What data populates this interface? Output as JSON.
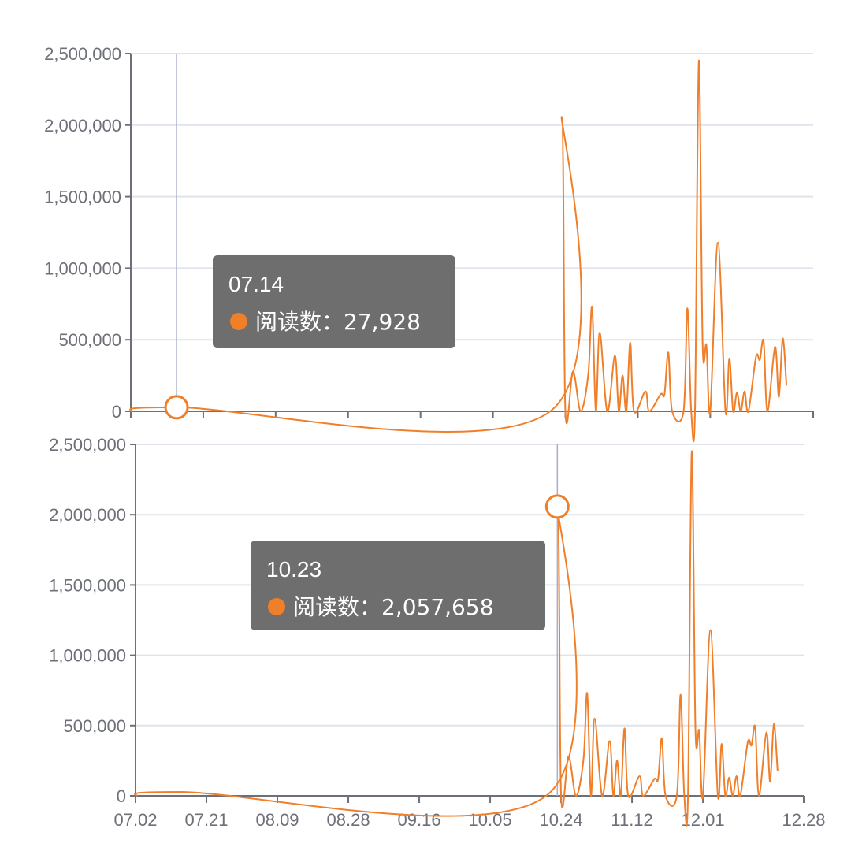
{
  "chart_data": [
    {
      "type": "line",
      "title": "",
      "xlabel": "",
      "ylabel": "",
      "ylim": [
        0,
        2500000
      ],
      "yticks": [
        "2,500,000",
        "2,000,000",
        "1,500,000",
        "1,000,000",
        "500,000",
        "0"
      ],
      "ytick_values": [
        2500000,
        2000000,
        1500000,
        1000000,
        500000,
        0
      ],
      "x_tick_labels": [],
      "grid": true,
      "color": "#f07f2a",
      "series": [
        {
          "name": "阅读数",
          "points": [
            {
              "x": "07.02",
              "y": 0
            },
            {
              "x": "07.14",
              "y": 27928
            },
            {
              "x": "10.20",
              "y": 0
            },
            {
              "x": "10.23",
              "y": 2057658
            },
            {
              "x": "10.24",
              "y": 0
            },
            {
              "x": "10.26",
              "y": 280000
            },
            {
              "x": "10.28",
              "y": 0
            },
            {
              "x": "10.30",
              "y": 260000
            },
            {
              "x": "10.31",
              "y": 730000
            },
            {
              "x": "11.01",
              "y": 0
            },
            {
              "x": "11.02",
              "y": 550000
            },
            {
              "x": "11.04",
              "y": 0
            },
            {
              "x": "11.06",
              "y": 390000
            },
            {
              "x": "11.07",
              "y": 0
            },
            {
              "x": "11.08",
              "y": 250000
            },
            {
              "x": "11.09",
              "y": 0
            },
            {
              "x": "11.10",
              "y": 480000
            },
            {
              "x": "11.11",
              "y": 0
            },
            {
              "x": "11.14",
              "y": 140000
            },
            {
              "x": "11.15",
              "y": 0
            },
            {
              "x": "11.18",
              "y": 120000
            },
            {
              "x": "11.19",
              "y": 120000
            },
            {
              "x": "11.20",
              "y": 410000
            },
            {
              "x": "11.21",
              "y": 0
            },
            {
              "x": "11.24",
              "y": 0
            },
            {
              "x": "11.25",
              "y": 720000
            },
            {
              "x": "11.26",
              "y": 0
            },
            {
              "x": "11.27",
              "y": 0
            },
            {
              "x": "11.28",
              "y": 2450000
            },
            {
              "x": "11.29",
              "y": 470000
            },
            {
              "x": "11.30",
              "y": 460000
            },
            {
              "x": "12.01",
              "y": 0
            },
            {
              "x": "12.03",
              "y": 1180000
            },
            {
              "x": "12.05",
              "y": 0
            },
            {
              "x": "12.06",
              "y": 370000
            },
            {
              "x": "12.07",
              "y": 0
            },
            {
              "x": "12.08",
              "y": 130000
            },
            {
              "x": "12.09",
              "y": 0
            },
            {
              "x": "12.10",
              "y": 140000
            },
            {
              "x": "12.11",
              "y": 0
            },
            {
              "x": "12.13",
              "y": 380000
            },
            {
              "x": "12.14",
              "y": 360000
            },
            {
              "x": "12.15",
              "y": 490000
            },
            {
              "x": "12.16",
              "y": 0
            },
            {
              "x": "12.18",
              "y": 450000
            },
            {
              "x": "12.19",
              "y": 100000
            },
            {
              "x": "12.20",
              "y": 510000
            },
            {
              "x": "12.21",
              "y": 180000
            }
          ]
        }
      ],
      "tooltip": {
        "date": "07.14",
        "label": "阅读数：27,928",
        "value": 27928,
        "x": "07.14"
      }
    },
    {
      "type": "line",
      "title": "",
      "xlabel": "",
      "ylabel": "",
      "ylim": [
        0,
        2500000
      ],
      "yticks": [
        "2,500,000",
        "2,000,000",
        "1,500,000",
        "1,000,000",
        "500,000",
        "0"
      ],
      "ytick_values": [
        2500000,
        2000000,
        1500000,
        1000000,
        500000,
        0
      ],
      "x_tick_labels": [
        "07.02",
        "07.21",
        "08.09",
        "08.28",
        "09.16",
        "10.05",
        "10.24",
        "11.12",
        "12.01",
        "12.28"
      ],
      "grid": true,
      "color": "#f07f2a",
      "series": [
        {
          "name": "阅读数",
          "points": [
            {
              "x": "07.02",
              "y": 0
            },
            {
              "x": "07.14",
              "y": 27928
            },
            {
              "x": "10.20",
              "y": 0
            },
            {
              "x": "10.23",
              "y": 2057658
            },
            {
              "x": "10.24",
              "y": 0
            },
            {
              "x": "10.26",
              "y": 280000
            },
            {
              "x": "10.28",
              "y": 0
            },
            {
              "x": "10.30",
              "y": 260000
            },
            {
              "x": "10.31",
              "y": 730000
            },
            {
              "x": "11.01",
              "y": 0
            },
            {
              "x": "11.02",
              "y": 550000
            },
            {
              "x": "11.04",
              "y": 0
            },
            {
              "x": "11.06",
              "y": 390000
            },
            {
              "x": "11.07",
              "y": 0
            },
            {
              "x": "11.08",
              "y": 250000
            },
            {
              "x": "11.09",
              "y": 0
            },
            {
              "x": "11.10",
              "y": 480000
            },
            {
              "x": "11.11",
              "y": 0
            },
            {
              "x": "11.14",
              "y": 140000
            },
            {
              "x": "11.15",
              "y": 0
            },
            {
              "x": "11.18",
              "y": 120000
            },
            {
              "x": "11.19",
              "y": 120000
            },
            {
              "x": "11.20",
              "y": 410000
            },
            {
              "x": "11.21",
              "y": 0
            },
            {
              "x": "11.24",
              "y": 0
            },
            {
              "x": "11.25",
              "y": 720000
            },
            {
              "x": "11.26",
              "y": 0
            },
            {
              "x": "11.27",
              "y": 0
            },
            {
              "x": "11.28",
              "y": 2450000
            },
            {
              "x": "11.29",
              "y": 470000
            },
            {
              "x": "11.30",
              "y": 460000
            },
            {
              "x": "12.01",
              "y": 0
            },
            {
              "x": "12.03",
              "y": 1180000
            },
            {
              "x": "12.05",
              "y": 0
            },
            {
              "x": "12.06",
              "y": 370000
            },
            {
              "x": "12.07",
              "y": 0
            },
            {
              "x": "12.08",
              "y": 130000
            },
            {
              "x": "12.09",
              "y": 0
            },
            {
              "x": "12.10",
              "y": 140000
            },
            {
              "x": "12.11",
              "y": 0
            },
            {
              "x": "12.13",
              "y": 380000
            },
            {
              "x": "12.14",
              "y": 360000
            },
            {
              "x": "12.15",
              "y": 490000
            },
            {
              "x": "12.16",
              "y": 0
            },
            {
              "x": "12.18",
              "y": 450000
            },
            {
              "x": "12.19",
              "y": 100000
            },
            {
              "x": "12.20",
              "y": 510000
            },
            {
              "x": "12.21",
              "y": 180000
            }
          ]
        }
      ],
      "tooltip": {
        "date": "10.23",
        "label": "阅读数：2,057,658",
        "value": 2057658,
        "x": "10.23"
      }
    }
  ],
  "colors": {
    "line": "#f07f2a",
    "marker": "#f07f2a",
    "tooltip_bg": "#6b6b6b",
    "grid": "#e0e3ea",
    "axis": "#6e7079",
    "pointer": "#a9aecb"
  }
}
